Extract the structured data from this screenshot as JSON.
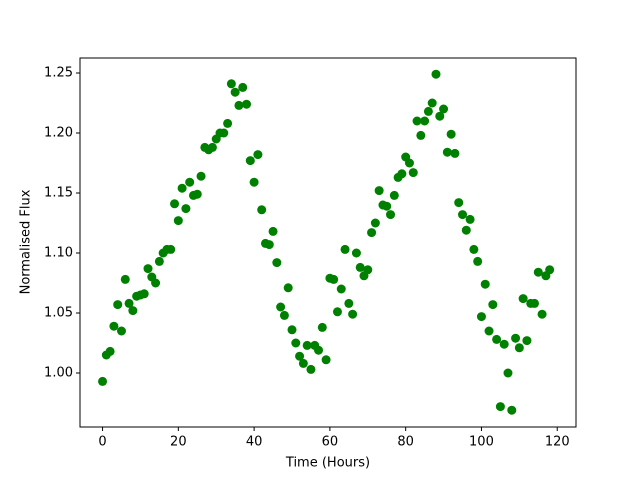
{
  "chart_data": {
    "type": "scatter",
    "xlabel": "Time (Hours)",
    "ylabel": "Normalised Flux",
    "color": "#008000",
    "xlim": [
      -5.95,
      124.95
    ],
    "ylim": [
      0.955,
      1.2625
    ],
    "xticks": [
      0,
      20,
      40,
      60,
      80,
      100,
      120
    ],
    "yticks": [
      {
        "value": 1.0,
        "label": "1.00"
      },
      {
        "value": 1.05,
        "label": "1.05"
      },
      {
        "value": 1.1,
        "label": "1.10"
      },
      {
        "value": 1.15,
        "label": "1.15"
      },
      {
        "value": 1.2,
        "label": "1.20"
      },
      {
        "value": 1.25,
        "label": "1.25"
      }
    ],
    "x": [
      0,
      1,
      2,
      3,
      4,
      5,
      6,
      7,
      8,
      9,
      10,
      11,
      12,
      13,
      14,
      15,
      16,
      17,
      18,
      19,
      20,
      21,
      22,
      23,
      24,
      25,
      26,
      27,
      28,
      29,
      30,
      31,
      32,
      33,
      34,
      35,
      36,
      37,
      38,
      39,
      40,
      41,
      42,
      43,
      44,
      45,
      46,
      47,
      48,
      49,
      50,
      51,
      52,
      53,
      54,
      55,
      56,
      57,
      58,
      59,
      60,
      61,
      62,
      63,
      64,
      65,
      66,
      67,
      68,
      69,
      70,
      71,
      72,
      73,
      74,
      75,
      76,
      77,
      78,
      79,
      80,
      81,
      82,
      83,
      84,
      85,
      86,
      87,
      88,
      89,
      90,
      91,
      92,
      93,
      94,
      95,
      96,
      97,
      98,
      99,
      100,
      101,
      102,
      103,
      104,
      105,
      106,
      107,
      108,
      109,
      110,
      111,
      112,
      113,
      114,
      115,
      116,
      117,
      118
    ],
    "values": [
      0.993,
      1.015,
      1.018,
      1.039,
      1.057,
      1.035,
      1.078,
      1.058,
      1.052,
      1.064,
      1.065,
      1.066,
      1.087,
      1.08,
      1.075,
      1.093,
      1.1,
      1.103,
      1.103,
      1.141,
      1.127,
      1.154,
      1.137,
      1.159,
      1.148,
      1.149,
      1.164,
      1.188,
      1.186,
      1.188,
      1.195,
      1.2,
      1.2,
      1.208,
      1.241,
      1.234,
      1.223,
      1.238,
      1.224,
      1.177,
      1.159,
      1.182,
      1.136,
      1.108,
      1.107,
      1.118,
      1.092,
      1.055,
      1.048,
      1.071,
      1.036,
      1.025,
      1.014,
      1.008,
      1.023,
      1.003,
      1.023,
      1.019,
      1.038,
      1.011,
      1.079,
      1.078,
      1.051,
      1.07,
      1.103,
      1.058,
      1.049,
      1.1,
      1.088,
      1.081,
      1.086,
      1.117,
      1.125,
      1.152,
      1.14,
      1.139,
      1.132,
      1.148,
      1.163,
      1.166,
      1.18,
      1.175,
      1.167,
      1.21,
      1.198,
      1.21,
      1.218,
      1.225,
      1.249,
      1.214,
      1.22,
      1.184,
      1.199,
      1.183,
      1.142,
      1.132,
      1.119,
      1.128,
      1.103,
      1.093,
      1.047,
      1.074,
      1.035,
      1.057,
      1.028,
      0.972,
      1.024,
      1.0,
      0.969,
      1.029,
      1.021,
      1.062,
      1.027,
      1.058,
      1.058,
      1.084,
      1.049,
      1.081,
      1.086
    ]
  }
}
